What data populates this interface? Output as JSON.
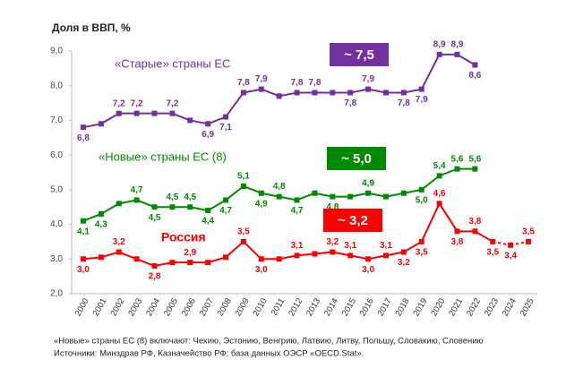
{
  "chart_data": {
    "type": "line",
    "title": "Доля в ВВП, %",
    "x": [
      "2000",
      "2001",
      "2002",
      "2003",
      "2004",
      "2005",
      "2006",
      "2007",
      "2008",
      "2009",
      "2010",
      "2011",
      "2012",
      "2013",
      "2014",
      "2015",
      "2016",
      "2017",
      "2018",
      "2019",
      "2020",
      "2021",
      "2022",
      "2023",
      "2024",
      "2025"
    ],
    "ylim": [
      2,
      9
    ],
    "yticks": [
      {
        "value": 2,
        "label": "2,0"
      },
      {
        "value": 3,
        "label": "3,0"
      },
      {
        "value": 4,
        "label": "4,0"
      },
      {
        "value": 5,
        "label": "5,0"
      },
      {
        "value": 6,
        "label": "6,0"
      },
      {
        "value": 7,
        "label": "7,0"
      },
      {
        "value": 8,
        "label": "8,0"
      },
      {
        "value": 9,
        "label": "9,0"
      }
    ],
    "grid": false,
    "series": [
      {
        "name": "«Старые» страны ЕС",
        "color": "#7030a0",
        "values": [
          6.8,
          6.9,
          7.2,
          7.2,
          7.2,
          7.2,
          7.0,
          6.9,
          7.1,
          7.8,
          7.9,
          7.7,
          7.8,
          7.8,
          7.8,
          7.8,
          7.9,
          7.8,
          7.8,
          7.9,
          8.9,
          8.9,
          8.6,
          null,
          null,
          null
        ],
        "value_labels": [
          "6,8",
          null,
          "7,2",
          "7,2",
          null,
          "7,2",
          null,
          "6,9",
          "7,1",
          "7,8",
          "7,9",
          null,
          "7,8",
          "7,8",
          null,
          "7,8",
          "7,9",
          null,
          "7,8",
          "7,9",
          "8,9",
          "8,9",
          "8,6",
          null,
          null,
          null
        ]
      },
      {
        "name": "«Новые» страны ЕС (8)",
        "color": "#008a00",
        "values": [
          4.1,
          4.3,
          4.6,
          4.7,
          4.5,
          4.5,
          4.5,
          4.4,
          4.7,
          5.1,
          4.9,
          4.8,
          4.7,
          4.9,
          4.8,
          4.8,
          4.9,
          4.8,
          4.9,
          5.0,
          5.4,
          5.6,
          5.6,
          null,
          null,
          null
        ],
        "value_labels": [
          "4,1",
          "4,3",
          null,
          "4,7",
          "4,5",
          "4,5",
          "4,5",
          "4,4",
          "4,7",
          "5,1",
          "4,9",
          "4,8",
          "4,7",
          null,
          "4,8",
          null,
          "4,9",
          null,
          null,
          "5,0",
          "5,4",
          "5,6",
          "5,6",
          null,
          null,
          null
        ]
      },
      {
        "name": "Россия",
        "color": "#ff0000",
        "dash_from": "2023",
        "values": [
          3.0,
          3.05,
          3.2,
          3.0,
          2.8,
          2.9,
          2.9,
          2.9,
          3.05,
          3.5,
          3.0,
          3.0,
          3.1,
          3.15,
          3.2,
          3.1,
          3.0,
          3.1,
          3.2,
          3.5,
          4.6,
          3.8,
          3.8,
          3.5,
          3.4,
          3.5
        ],
        "value_labels": [
          "3,0",
          null,
          "3,2",
          null,
          "2,8",
          null,
          "2,9",
          null,
          null,
          "3,5",
          "3,0",
          null,
          "3,1",
          null,
          "3,2",
          "3,1",
          "3,0",
          "3,1",
          "3,2",
          "3,5",
          "4,6",
          "3,8",
          "3,8",
          "3,5",
          "3,4",
          "3,5"
        ]
      }
    ],
    "annotations": [
      {
        "text": "~ 7,5",
        "color": "#7030a0"
      },
      {
        "text": "~ 5,0",
        "color": "#008a00"
      },
      {
        "text": "~ 3,2",
        "color": "#ff0000"
      }
    ],
    "notes": [
      "«Новые» страны ЕС (8) включают: Чехию, Эстонию, Венгрию, Латвию, Литву, Польшу, Словакию, Словению",
      "Источники: Минздрав РФ, Казначейство РФ; база данных ОЭСР «OECD.Stat»."
    ]
  }
}
